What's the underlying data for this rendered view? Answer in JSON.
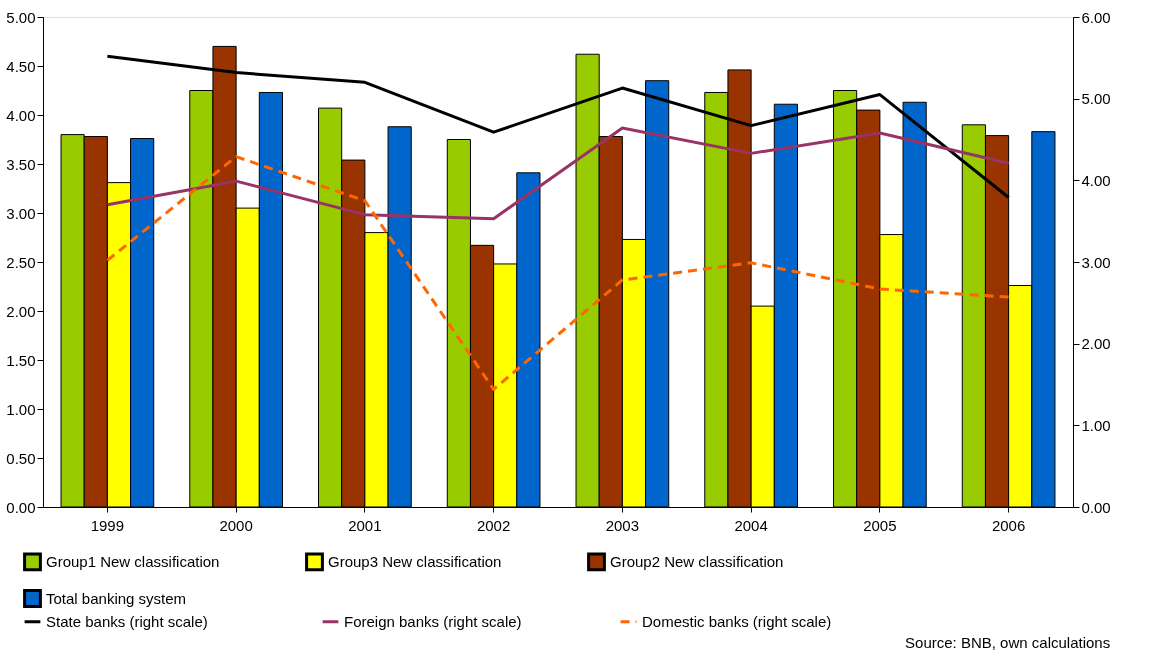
{
  "chart_data": {
    "type": "bar",
    "categories": [
      "1999",
      "2000",
      "2001",
      "2002",
      "2003",
      "2004",
      "2005",
      "2006"
    ],
    "series": [
      {
        "name": "Group1 New classification",
        "color": "#99cc00",
        "values": [
          3.8,
          4.25,
          4.07,
          3.75,
          4.62,
          4.23,
          4.25,
          3.9
        ]
      },
      {
        "name": "Group2 New classification",
        "color": "#993300",
        "values": [
          3.78,
          4.7,
          3.54,
          2.67,
          3.78,
          4.46,
          4.05,
          3.79
        ]
      },
      {
        "name": "Group3 New classification",
        "color": "#ffff00",
        "values": [
          3.31,
          3.05,
          2.8,
          2.48,
          2.73,
          2.05,
          2.78,
          2.26
        ]
      },
      {
        "name": "Total banking system",
        "color": "#0066cc",
        "values": [
          3.76,
          4.23,
          3.88,
          3.41,
          4.35,
          4.11,
          4.13,
          3.83
        ]
      },
      {
        "name": "State banks (right scale)",
        "type": "line",
        "axis": "y2",
        "color": "#000000",
        "line_style": "solid",
        "values": [
          5.52,
          5.32,
          5.2,
          4.59,
          5.13,
          4.67,
          5.05,
          3.79
        ]
      },
      {
        "name": "Foreign banks (right scale)",
        "type": "line",
        "axis": "y2",
        "color": "#993366",
        "line_style": "solid",
        "values": [
          3.7,
          3.99,
          3.58,
          3.53,
          4.64,
          4.33,
          4.58,
          4.21
        ]
      },
      {
        "name": "Domestic banks (right scale)",
        "type": "line",
        "axis": "y2",
        "color": "#ff6600",
        "line_style": "dashed",
        "values": [
          3.02,
          4.29,
          3.75,
          1.44,
          2.78,
          2.99,
          2.67,
          2.57
        ]
      }
    ],
    "ylim": [
      0,
      5
    ],
    "yticks": [
      {
        "value": 0,
        "label": "0.00"
      },
      {
        "value": 0.5,
        "label": "0.50"
      },
      {
        "value": 1,
        "label": "1.00"
      },
      {
        "value": 1.5,
        "label": "1.50"
      },
      {
        "value": 2,
        "label": "2.00"
      },
      {
        "value": 2.5,
        "label": "2.50"
      },
      {
        "value": 3,
        "label": "3.00"
      },
      {
        "value": 3.5,
        "label": "3.50"
      },
      {
        "value": 4,
        "label": "4.00"
      },
      {
        "value": 4.5,
        "label": "4.50"
      },
      {
        "value": 5,
        "label": "5.00"
      }
    ],
    "y2lim": [
      0,
      6
    ],
    "y2ticks": [
      {
        "value": 0,
        "label": "0.00"
      },
      {
        "value": 1,
        "label": "1.00"
      },
      {
        "value": 2,
        "label": "2.00"
      },
      {
        "value": 3,
        "label": "3.00"
      },
      {
        "value": 4,
        "label": "4.00"
      },
      {
        "value": 5,
        "label": "5.00"
      },
      {
        "value": 6,
        "label": "6.00"
      }
    ],
    "grid": false,
    "legend": "bottom",
    "annotations": [
      "Source: BNB, own calculations"
    ]
  }
}
